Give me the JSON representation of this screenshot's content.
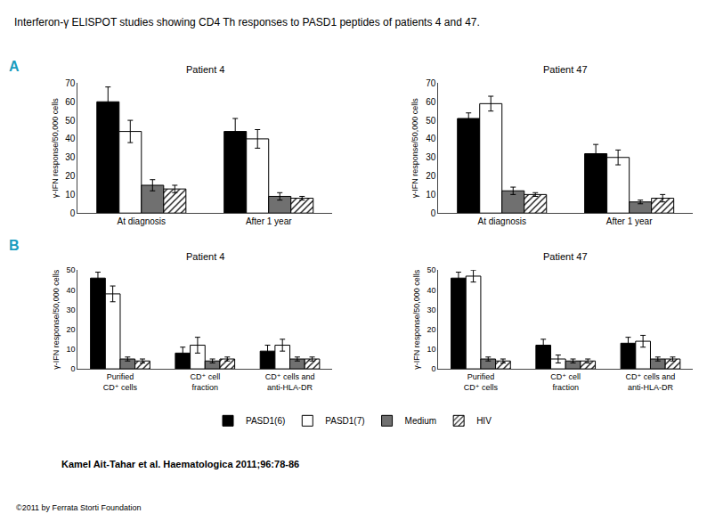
{
  "title": "Interferon-γ ELISPOT studies showing CD4 Th responses to PASD1 peptides of patients 4 and 47.",
  "annotations": [
    {
      "text": "Kamel Ait-Tahar et al. Haematologica 2011;96:78-86"
    },
    {
      "text": "©2011 by Ferrata Storti Foundation"
    }
  ],
  "chart_data": [
    {
      "type": "bar",
      "title": "Patient 4",
      "ylabel": "γ-IFN response/50,000 cells",
      "categories": [
        "At diagnosis",
        "After 1 year"
      ],
      "series": [
        {
          "name": "PASD1(6)",
          "color": "#000000",
          "values": [
            60,
            44
          ],
          "errors": [
            8,
            7
          ]
        },
        {
          "name": "PASD1(7)",
          "color": "#ffffff",
          "values": [
            44,
            40
          ],
          "errors": [
            6,
            5
          ]
        },
        {
          "name": "Medium",
          "color": "#707070",
          "values": [
            15,
            9
          ],
          "errors": [
            3,
            2
          ]
        },
        {
          "name": "HIV",
          "color": "#ffffff",
          "marker": "hatched",
          "values": [
            13,
            8
          ],
          "errors": [
            2,
            1
          ]
        }
      ],
      "ylim": [
        0,
        70
      ],
      "yticks": [
        0,
        10,
        20,
        30,
        40,
        50,
        60,
        70
      ],
      "grid": false,
      "legend": "bottom",
      "annotations": [
        {
          "text": "A",
          "color": "#1a9dbf"
        }
      ]
    },
    {
      "type": "bar",
      "title": "Patient 47",
      "ylabel": "γ-IFN response/50,000 cells",
      "categories": [
        "At diagnosis",
        "After 1 year"
      ],
      "series": [
        {
          "name": "PASD1(6)",
          "color": "#000000",
          "values": [
            51,
            32
          ],
          "errors": [
            3,
            5
          ]
        },
        {
          "name": "PASD1(7)",
          "color": "#ffffff",
          "values": [
            59,
            30
          ],
          "errors": [
            4,
            4
          ]
        },
        {
          "name": "Medium",
          "color": "#707070",
          "values": [
            12,
            6
          ],
          "errors": [
            2,
            1
          ]
        },
        {
          "name": "HIV",
          "color": "#ffffff",
          "marker": "hatched",
          "values": [
            10,
            8
          ],
          "errors": [
            1,
            2
          ]
        }
      ],
      "ylim": [
        0,
        70
      ],
      "yticks": [
        0,
        10,
        20,
        30,
        40,
        50,
        60,
        70
      ],
      "grid": false
    },
    {
      "type": "bar",
      "title": "Patient 4",
      "ylabel": "γ-IFN response/50,000 cells",
      "categories": [
        "Purified\nCD⁺ cells",
        "CD⁺ cell\nfraction",
        "CD⁺ cells and\nanti-HLA-DR"
      ],
      "series": [
        {
          "name": "PASD1(6)",
          "color": "#000000",
          "values": [
            46,
            8,
            9
          ],
          "errors": [
            3,
            3,
            3
          ]
        },
        {
          "name": "PASD1(7)",
          "color": "#ffffff",
          "values": [
            38,
            12,
            12
          ],
          "errors": [
            4,
            4,
            3
          ]
        },
        {
          "name": "Medium",
          "color": "#707070",
          "values": [
            5,
            4,
            5
          ],
          "errors": [
            1,
            1,
            1
          ]
        },
        {
          "name": "HIV",
          "color": "#ffffff",
          "marker": "hatched",
          "values": [
            4,
            5,
            5
          ],
          "errors": [
            1,
            1,
            1
          ]
        }
      ],
      "ylim": [
        0,
        50
      ],
      "yticks": [
        0,
        10,
        20,
        30,
        40,
        50
      ],
      "grid": false,
      "annotations": [
        {
          "text": "B",
          "color": "#1a9dbf"
        }
      ]
    },
    {
      "type": "bar",
      "title": "Patient 47",
      "ylabel": "γ-IFN response/50,000 cells",
      "categories": [
        "Purified\nCD⁺ cells",
        "CD⁺ cell\nfraction",
        "CD⁺ cells and\nanti-HLA-DR"
      ],
      "series": [
        {
          "name": "PASD1(6)",
          "color": "#000000",
          "values": [
            46,
            12,
            13
          ],
          "errors": [
            3,
            3,
            3
          ]
        },
        {
          "name": "PASD1(7)",
          "color": "#ffffff",
          "values": [
            47,
            5,
            14
          ],
          "errors": [
            3,
            2,
            3
          ]
        },
        {
          "name": "Medium",
          "color": "#707070",
          "values": [
            5,
            4,
            5
          ],
          "errors": [
            1,
            1,
            1
          ]
        },
        {
          "name": "HIV",
          "color": "#ffffff",
          "marker": "hatched",
          "values": [
            4,
            4,
            5
          ],
          "errors": [
            1,
            1,
            1
          ]
        }
      ],
      "ylim": [
        0,
        50
      ],
      "yticks": [
        0,
        10,
        20,
        30,
        40,
        50
      ],
      "grid": false
    }
  ]
}
